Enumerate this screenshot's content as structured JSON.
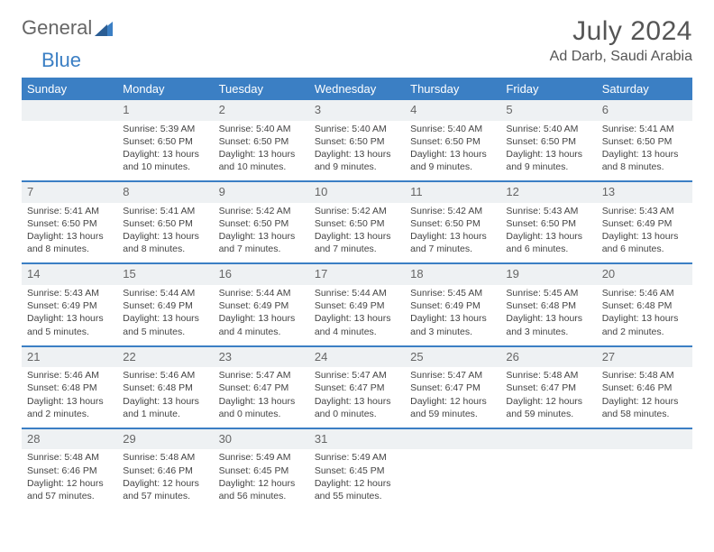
{
  "logo": {
    "text1": "General",
    "text2": "Blue"
  },
  "title": "July 2024",
  "location": "Ad Darb, Saudi Arabia",
  "colors": {
    "header_bg": "#3b7fc4",
    "header_text": "#ffffff",
    "daynum_bg": "#eef1f3",
    "divider": "#3b7fc4",
    "text": "#444444"
  },
  "weekdays": [
    "Sunday",
    "Monday",
    "Tuesday",
    "Wednesday",
    "Thursday",
    "Friday",
    "Saturday"
  ],
  "weeks": [
    [
      {
        "day": "",
        "lines": [
          "",
          "",
          "",
          ""
        ]
      },
      {
        "day": "1",
        "lines": [
          "Sunrise: 5:39 AM",
          "Sunset: 6:50 PM",
          "Daylight: 13 hours",
          "and 10 minutes."
        ]
      },
      {
        "day": "2",
        "lines": [
          "Sunrise: 5:40 AM",
          "Sunset: 6:50 PM",
          "Daylight: 13 hours",
          "and 10 minutes."
        ]
      },
      {
        "day": "3",
        "lines": [
          "Sunrise: 5:40 AM",
          "Sunset: 6:50 PM",
          "Daylight: 13 hours",
          "and 9 minutes."
        ]
      },
      {
        "day": "4",
        "lines": [
          "Sunrise: 5:40 AM",
          "Sunset: 6:50 PM",
          "Daylight: 13 hours",
          "and 9 minutes."
        ]
      },
      {
        "day": "5",
        "lines": [
          "Sunrise: 5:40 AM",
          "Sunset: 6:50 PM",
          "Daylight: 13 hours",
          "and 9 minutes."
        ]
      },
      {
        "day": "6",
        "lines": [
          "Sunrise: 5:41 AM",
          "Sunset: 6:50 PM",
          "Daylight: 13 hours",
          "and 8 minutes."
        ]
      }
    ],
    [
      {
        "day": "7",
        "lines": [
          "Sunrise: 5:41 AM",
          "Sunset: 6:50 PM",
          "Daylight: 13 hours",
          "and 8 minutes."
        ]
      },
      {
        "day": "8",
        "lines": [
          "Sunrise: 5:41 AM",
          "Sunset: 6:50 PM",
          "Daylight: 13 hours",
          "and 8 minutes."
        ]
      },
      {
        "day": "9",
        "lines": [
          "Sunrise: 5:42 AM",
          "Sunset: 6:50 PM",
          "Daylight: 13 hours",
          "and 7 minutes."
        ]
      },
      {
        "day": "10",
        "lines": [
          "Sunrise: 5:42 AM",
          "Sunset: 6:50 PM",
          "Daylight: 13 hours",
          "and 7 minutes."
        ]
      },
      {
        "day": "11",
        "lines": [
          "Sunrise: 5:42 AM",
          "Sunset: 6:50 PM",
          "Daylight: 13 hours",
          "and 7 minutes."
        ]
      },
      {
        "day": "12",
        "lines": [
          "Sunrise: 5:43 AM",
          "Sunset: 6:50 PM",
          "Daylight: 13 hours",
          "and 6 minutes."
        ]
      },
      {
        "day": "13",
        "lines": [
          "Sunrise: 5:43 AM",
          "Sunset: 6:49 PM",
          "Daylight: 13 hours",
          "and 6 minutes."
        ]
      }
    ],
    [
      {
        "day": "14",
        "lines": [
          "Sunrise: 5:43 AM",
          "Sunset: 6:49 PM",
          "Daylight: 13 hours",
          "and 5 minutes."
        ]
      },
      {
        "day": "15",
        "lines": [
          "Sunrise: 5:44 AM",
          "Sunset: 6:49 PM",
          "Daylight: 13 hours",
          "and 5 minutes."
        ]
      },
      {
        "day": "16",
        "lines": [
          "Sunrise: 5:44 AM",
          "Sunset: 6:49 PM",
          "Daylight: 13 hours",
          "and 4 minutes."
        ]
      },
      {
        "day": "17",
        "lines": [
          "Sunrise: 5:44 AM",
          "Sunset: 6:49 PM",
          "Daylight: 13 hours",
          "and 4 minutes."
        ]
      },
      {
        "day": "18",
        "lines": [
          "Sunrise: 5:45 AM",
          "Sunset: 6:49 PM",
          "Daylight: 13 hours",
          "and 3 minutes."
        ]
      },
      {
        "day": "19",
        "lines": [
          "Sunrise: 5:45 AM",
          "Sunset: 6:48 PM",
          "Daylight: 13 hours",
          "and 3 minutes."
        ]
      },
      {
        "day": "20",
        "lines": [
          "Sunrise: 5:46 AM",
          "Sunset: 6:48 PM",
          "Daylight: 13 hours",
          "and 2 minutes."
        ]
      }
    ],
    [
      {
        "day": "21",
        "lines": [
          "Sunrise: 5:46 AM",
          "Sunset: 6:48 PM",
          "Daylight: 13 hours",
          "and 2 minutes."
        ]
      },
      {
        "day": "22",
        "lines": [
          "Sunrise: 5:46 AM",
          "Sunset: 6:48 PM",
          "Daylight: 13 hours",
          "and 1 minute."
        ]
      },
      {
        "day": "23",
        "lines": [
          "Sunrise: 5:47 AM",
          "Sunset: 6:47 PM",
          "Daylight: 13 hours",
          "and 0 minutes."
        ]
      },
      {
        "day": "24",
        "lines": [
          "Sunrise: 5:47 AM",
          "Sunset: 6:47 PM",
          "Daylight: 13 hours",
          "and 0 minutes."
        ]
      },
      {
        "day": "25",
        "lines": [
          "Sunrise: 5:47 AM",
          "Sunset: 6:47 PM",
          "Daylight: 12 hours",
          "and 59 minutes."
        ]
      },
      {
        "day": "26",
        "lines": [
          "Sunrise: 5:48 AM",
          "Sunset: 6:47 PM",
          "Daylight: 12 hours",
          "and 59 minutes."
        ]
      },
      {
        "day": "27",
        "lines": [
          "Sunrise: 5:48 AM",
          "Sunset: 6:46 PM",
          "Daylight: 12 hours",
          "and 58 minutes."
        ]
      }
    ],
    [
      {
        "day": "28",
        "lines": [
          "Sunrise: 5:48 AM",
          "Sunset: 6:46 PM",
          "Daylight: 12 hours",
          "and 57 minutes."
        ]
      },
      {
        "day": "29",
        "lines": [
          "Sunrise: 5:48 AM",
          "Sunset: 6:46 PM",
          "Daylight: 12 hours",
          "and 57 minutes."
        ]
      },
      {
        "day": "30",
        "lines": [
          "Sunrise: 5:49 AM",
          "Sunset: 6:45 PM",
          "Daylight: 12 hours",
          "and 56 minutes."
        ]
      },
      {
        "day": "31",
        "lines": [
          "Sunrise: 5:49 AM",
          "Sunset: 6:45 PM",
          "Daylight: 12 hours",
          "and 55 minutes."
        ]
      },
      {
        "day": "",
        "lines": [
          "",
          "",
          "",
          ""
        ]
      },
      {
        "day": "",
        "lines": [
          "",
          "",
          "",
          ""
        ]
      },
      {
        "day": "",
        "lines": [
          "",
          "",
          "",
          ""
        ]
      }
    ]
  ]
}
